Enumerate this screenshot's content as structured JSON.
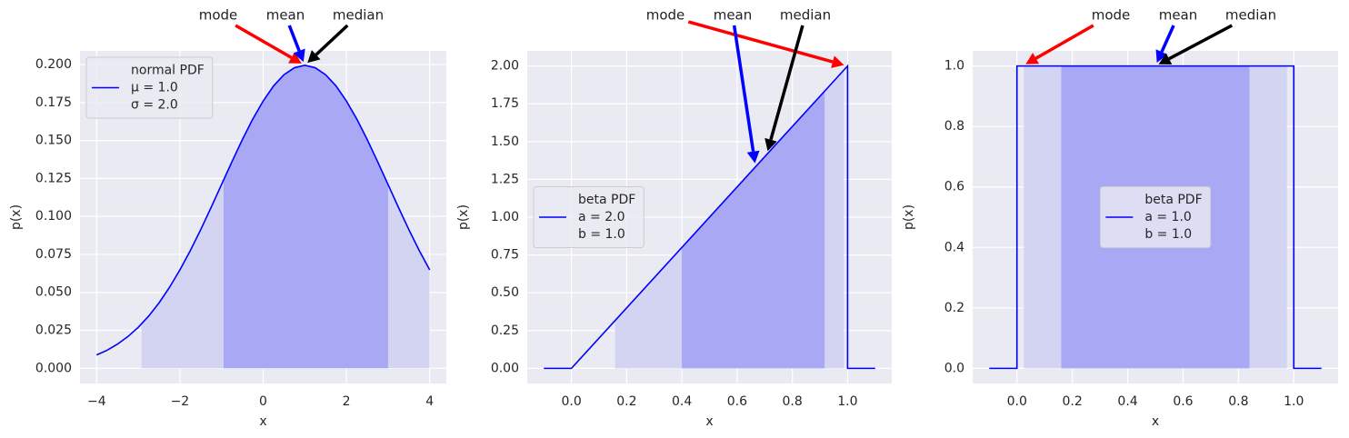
{
  "chart_data": [
    {
      "type": "line",
      "xlabel": "x",
      "ylabel": "p(x)",
      "x": [
        -4,
        -3.75,
        -3.5,
        -3.25,
        -3,
        -2.75,
        -2.5,
        -2.25,
        -2,
        -1.75,
        -1.5,
        -1.25,
        -1,
        -0.75,
        -0.5,
        -0.25,
        0,
        0.25,
        0.5,
        0.75,
        1,
        1.25,
        1.5,
        1.75,
        2,
        2.25,
        2.5,
        2.75,
        3,
        3.25,
        3.5,
        3.75,
        4
      ],
      "series": [
        {
          "name": [
            "normal PDF",
            "μ = 1.0",
            "σ = 2.0"
          ],
          "color": "#0000ff",
          "values": [
            0.00876,
            0.01189,
            0.01588,
            0.02087,
            0.027,
            0.03439,
            0.0431,
            0.05328,
            0.0648,
            0.07751,
            0.0913,
            0.10594,
            0.121,
            0.13602,
            0.1506,
            0.16409,
            0.176,
            0.18593,
            0.1933,
            0.19791,
            0.1995,
            0.19791,
            0.1933,
            0.18593,
            0.176,
            0.16409,
            0.1506,
            0.13602,
            0.121,
            0.10594,
            0.0913,
            0.07751,
            0.0648
          ]
        }
      ],
      "intervals": [
        [
          -2.92,
          4.0
        ],
        [
          -0.95,
          3.0
        ]
      ],
      "interval_colors": [
        "#d3d3f2",
        "#a8a8f5"
      ],
      "xlim": [
        -4.4,
        4.4
      ],
      "ylim": [
        -0.01,
        0.209
      ],
      "xticks": [
        {
          "value": -4,
          "label": "−4"
        },
        {
          "value": -2,
          "label": "−2"
        },
        0,
        2,
        4
      ],
      "yticks": [
        {
          "value": 0,
          "label": "0.000"
        },
        0.025,
        {
          "value": 0.05,
          "label": "0.050"
        },
        0.075,
        {
          "value": 0.1,
          "label": "0.100"
        },
        0.125,
        {
          "value": 0.15,
          "label": "0.150"
        },
        0.175,
        {
          "value": 0.2,
          "label": "0.200"
        }
      ],
      "grid": true,
      "legend_loc": "upper left",
      "annotations": [
        {
          "text": "mode",
          "x": 1,
          "y": 0.1995,
          "color": "#ff0000"
        },
        {
          "text": "mean",
          "x": 1,
          "y": 0.1995,
          "color": "#0000ff"
        },
        {
          "text": "median",
          "x": 1,
          "y": 0.1995,
          "color": "#000000"
        }
      ]
    },
    {
      "type": "line",
      "xlabel": "x",
      "ylabel": "p(x)",
      "x": [
        -0.1,
        0,
        1,
        1,
        1.1
      ],
      "series": [
        {
          "name": [
            "beta PDF",
            "a = 2.0",
            "b = 1.0"
          ],
          "color": "#0000ff",
          "values": [
            0,
            0,
            2,
            0,
            0
          ]
        }
      ],
      "intervals": [
        [
          0.158,
          0.987
        ],
        [
          0.4,
          0.917
        ]
      ],
      "interval_colors": [
        "#d3d3f2",
        "#a8a8f5"
      ],
      "xlim": [
        -0.16,
        1.16
      ],
      "ylim": [
        -0.1,
        2.1
      ],
      "xticks": [
        {
          "value": 0,
          "label": "0.0"
        },
        0.2,
        0.4,
        0.6,
        0.8,
        {
          "value": 1,
          "label": "1.0"
        }
      ],
      "yticks": [
        {
          "value": 0,
          "label": "0.00"
        },
        0.25,
        {
          "value": 0.5,
          "label": "0.50"
        },
        0.75,
        {
          "value": 1,
          "label": "1.00"
        },
        1.25,
        {
          "value": 1.5,
          "label": "1.50"
        },
        1.75,
        {
          "value": 2,
          "label": "2.00"
        }
      ],
      "grid": true,
      "legend_loc": "center left",
      "annotations": [
        {
          "text": "mode",
          "x": 1,
          "y": 2,
          "color": "#ff0000"
        },
        {
          "text": "mean",
          "x": 0.6667,
          "y": 1.3333,
          "color": "#0000ff"
        },
        {
          "text": "median",
          "x": 0.7071,
          "y": 1.4142,
          "color": "#000000"
        }
      ]
    },
    {
      "type": "line",
      "xlabel": "x",
      "ylabel": "p(x)",
      "x": [
        -0.1,
        0,
        0,
        1,
        1,
        1.1
      ],
      "series": [
        {
          "name": [
            "beta PDF",
            "a = 1.0",
            "b = 1.0"
          ],
          "color": "#0000ff",
          "values": [
            0,
            0,
            1,
            1,
            0,
            0
          ]
        }
      ],
      "intervals": [
        [
          0.025,
          0.975
        ],
        [
          0.16,
          0.84
        ]
      ],
      "interval_colors": [
        "#d3d3f2",
        "#a8a8f5"
      ],
      "xlim": [
        -0.16,
        1.16
      ],
      "ylim": [
        -0.05,
        1.05
      ],
      "xticks": [
        {
          "value": 0,
          "label": "0.0"
        },
        0.2,
        0.4,
        0.6,
        0.8,
        {
          "value": 1,
          "label": "1.0"
        }
      ],
      "yticks": [
        {
          "value": 0,
          "label": "0.0"
        },
        0.2,
        0.4,
        0.6,
        0.8,
        {
          "value": 1,
          "label": "1.0"
        }
      ],
      "grid": true,
      "legend_loc": "center",
      "annotations": [
        {
          "text": "mode",
          "x": 0.02,
          "y": 1,
          "color": "#ff0000"
        },
        {
          "text": "mean",
          "x": 0.5,
          "y": 1,
          "color": "#0000ff"
        },
        {
          "text": "median",
          "x": 0.5,
          "y": 1,
          "color": "#000000"
        }
      ]
    }
  ]
}
